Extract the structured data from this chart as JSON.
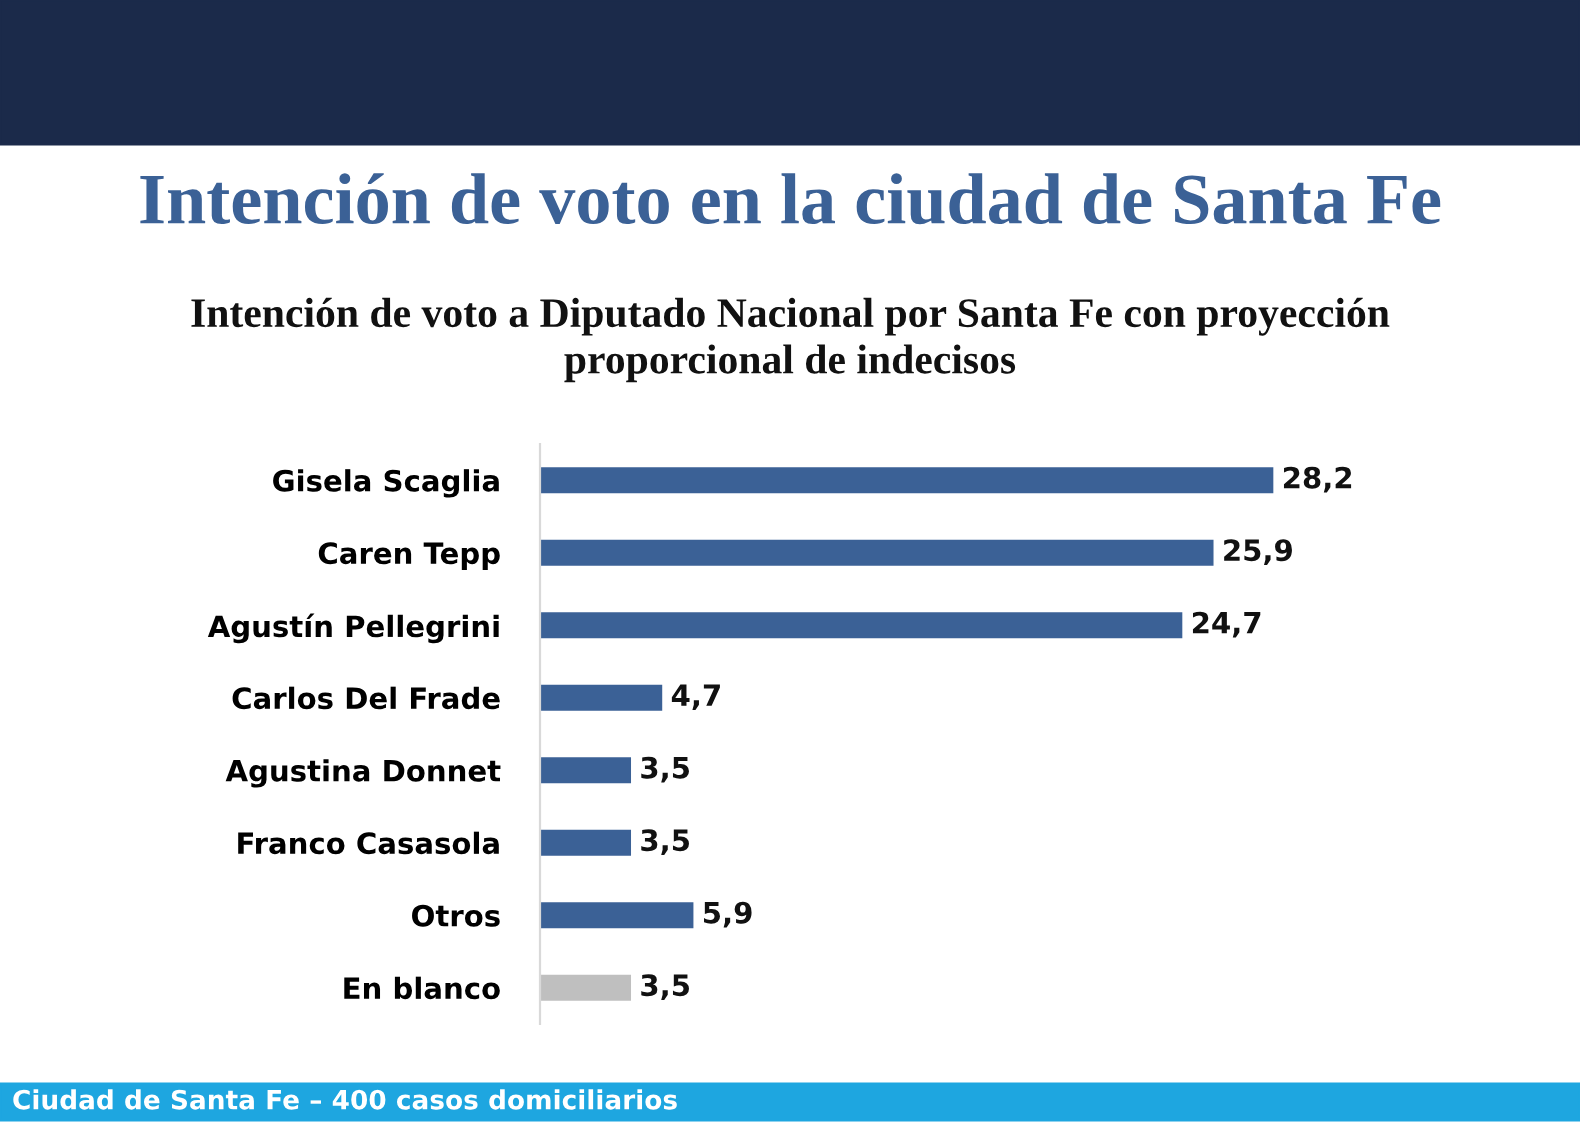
{
  "chart_data": {
    "type": "bar",
    "orientation": "horizontal",
    "title": "Intención de voto en la ciudad de Santa Fe",
    "subtitle": "Intención de voto a Diputado Nacional por Santa Fe con proyección\nproporcional de indecisos",
    "categories": [
      "Gisela Scaglia",
      "Caren Tepp",
      "Agustín Pellegrini",
      "Carlos Del Frade",
      "Agustina Donnet",
      "Franco Casasola",
      "Otros",
      "En blanco"
    ],
    "values": [
      28.2,
      25.9,
      24.7,
      4.7,
      3.5,
      3.5,
      5.9,
      3.5
    ],
    "colors": [
      "#3b6196",
      "#3b6196",
      "#3b6196",
      "#3b6196",
      "#3b6196",
      "#3b6196",
      "#3b6196",
      "#bfbfbf"
    ],
    "value_labels": [
      "28,2",
      "25,9",
      "24,7",
      "4,7",
      "3,5",
      "3,5",
      "5,9",
      "3,5"
    ],
    "annotations": [
      "Ciudad de Santa Fe – 400 casos domiciliarios"
    ],
    "grid": false,
    "legend": false
  }
}
